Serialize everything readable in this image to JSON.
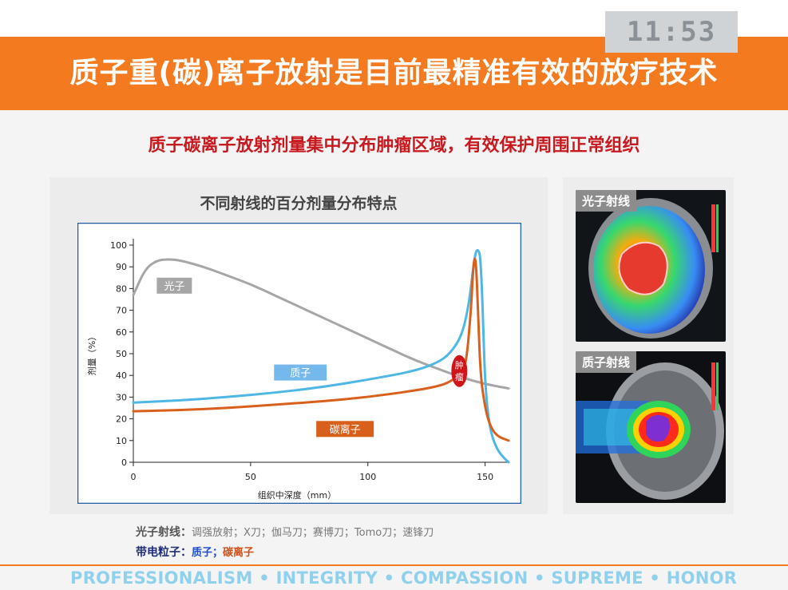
{
  "timer": "11:53",
  "banner_title": "质子重(碳)离子放射是目前最精准有效的放疗技术",
  "subtitle": "质子碳离子放射剂量集中分布肿瘤区域，有效保护周围正常组织",
  "chart_title": "不同射线的百分剂量分布特点",
  "chart_data": {
    "type": "line",
    "title": "不同射线的百分剂量分布特点",
    "xlabel": "组织中深度（mm）",
    "ylabel": "剂量（%）",
    "xlim": [
      0,
      160
    ],
    "ylim": [
      0,
      100
    ],
    "x_ticks": [
      0,
      50,
      100,
      150
    ],
    "y_ticks": [
      0,
      10,
      20,
      30,
      40,
      50,
      60,
      70,
      80,
      90,
      100
    ],
    "series": [
      {
        "name": "光子",
        "x": [
          0,
          5,
          10,
          15,
          20,
          30,
          40,
          50,
          60,
          70,
          80,
          90,
          100,
          110,
          120,
          130,
          140,
          150,
          160
        ],
        "y": [
          77,
          89,
          93,
          93.5,
          93,
          90,
          86,
          82,
          77,
          72,
          67,
          62,
          57,
          52,
          47,
          43,
          39,
          36,
          34
        ]
      },
      {
        "name": "质子",
        "x": [
          0,
          20,
          40,
          60,
          80,
          100,
          120,
          130,
          135,
          140,
          143,
          145,
          146,
          147,
          148,
          149,
          150,
          152,
          155,
          158,
          160
        ],
        "y": [
          27.5,
          28.5,
          30,
          32,
          34.5,
          38,
          42,
          46,
          50,
          58,
          72,
          90,
          97,
          98,
          95,
          70,
          35,
          15,
          6,
          2,
          0
        ]
      },
      {
        "name": "碳离子",
        "x": [
          0,
          20,
          40,
          60,
          80,
          100,
          120,
          130,
          135,
          140,
          142,
          144,
          145,
          146,
          147,
          148,
          150,
          152,
          155,
          160
        ],
        "y": [
          23.5,
          24,
          25,
          26.5,
          28,
          30,
          33,
          35,
          37,
          41,
          46,
          70,
          92,
          95,
          70,
          40,
          25,
          17,
          12,
          10
        ]
      }
    ],
    "annotations": [
      "光子",
      "质子",
      "碳离子",
      "肿瘤"
    ]
  },
  "tumor_label": "肿瘤",
  "scans": [
    {
      "label": "光子射线"
    },
    {
      "label": "质子射线"
    }
  ],
  "legend": {
    "photon_head": "光子射线：",
    "photon_items": "调强放射；X刀；伽马刀；赛博刀；Tomo刀；速锋刀",
    "particle_head": "带电粒子：",
    "proton": "质子；",
    "carbon": "碳离子"
  },
  "footer": "PROFESSIONALISM • INTEGRITY • COMPASSION • SUPREME • HONOR",
  "colors": {
    "accent": "#f47a20",
    "subtitle": "#c8191e",
    "photon": "#a6a6a6",
    "proton": "#4eb7e6",
    "carbon": "#d9601c",
    "tumor": "#d1141a"
  }
}
